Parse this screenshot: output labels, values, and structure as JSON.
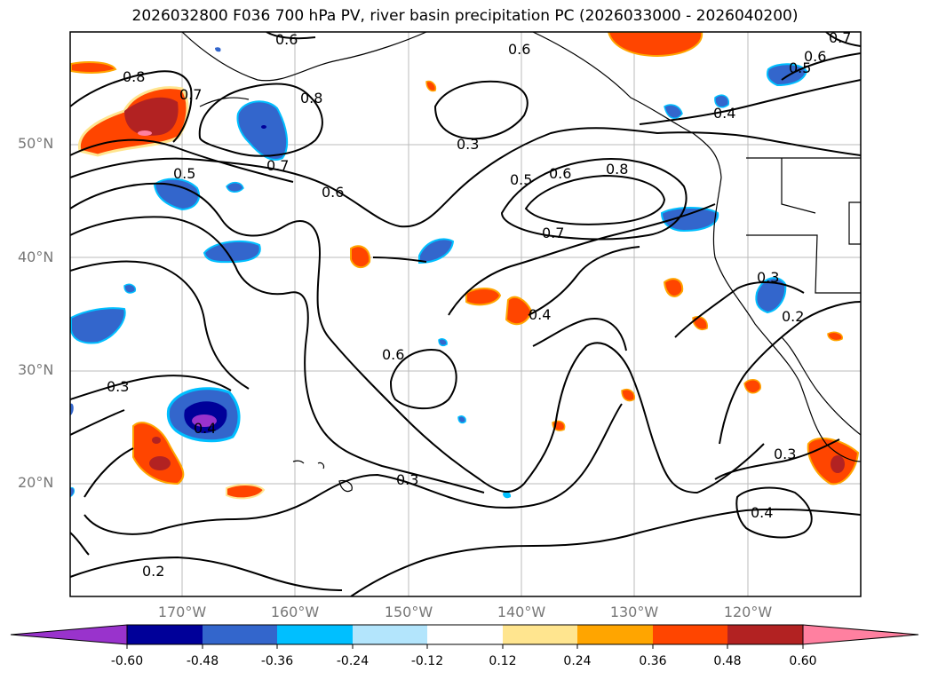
{
  "title": "2026032800 F036 700 hPa PV, river basin precipitation PC (2026033000 - 2026040200)",
  "lat_labels": [
    "50°N",
    "40°N",
    "30°N",
    "20°N"
  ],
  "lon_labels": [
    "170°W",
    "160°W",
    "150°W",
    "140°W",
    "130°W",
    "120°W"
  ],
  "colorbar": {
    "colors": [
      "#9933cc",
      "#000099",
      "#3366cc",
      "#00bfff",
      "#b3e5fc",
      "#ffffff",
      "#ffe58f",
      "#ffa500",
      "#ff4500",
      "#b22222",
      "#ff80a0"
    ],
    "tick_labels": [
      "-0.60",
      "-0.48",
      "-0.36",
      "-0.24",
      "-0.12",
      "0.12",
      "0.24",
      "0.36",
      "0.48",
      "0.60"
    ]
  },
  "contour_labels": [
    "0.6",
    "0.6",
    "0.6",
    "0.7",
    "0.5",
    "0.8",
    "0.7",
    "0.8",
    "0.4",
    "0.7",
    "0.3",
    "0.5",
    "0.6",
    "0.8",
    "0.5",
    "0.6",
    "0.7",
    "0.3",
    "0.4",
    "0.2",
    "0.6",
    "0.3",
    "0.3",
    "0.4",
    "0.3",
    "0.4",
    "0.2"
  ]
}
